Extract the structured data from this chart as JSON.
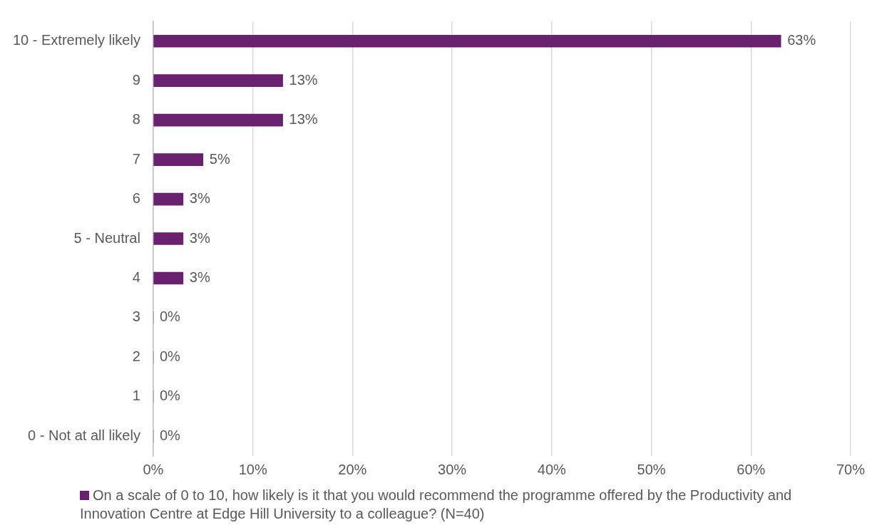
{
  "chart_data": {
    "type": "bar",
    "orientation": "horizontal",
    "categories": [
      "10 - Extremely likely",
      "9",
      "8",
      "7",
      "6",
      "5 - Neutral",
      "4",
      "3",
      "2",
      "1",
      "0 - Not at all likely"
    ],
    "series": [
      {
        "name": "On a scale of 0 to 10, how likely is it that you would recommend the programme offered by the Productivity and Innovation Centre at Edge Hill University to a colleague? (N=40)",
        "color": "#68206f",
        "values": [
          63,
          13,
          13,
          5,
          3,
          3,
          3,
          0,
          0,
          0,
          0
        ],
        "value_labels": [
          "63%",
          "13%",
          "13%",
          "5%",
          "3%",
          "3%",
          "3%",
          "0%",
          "0%",
          "0%",
          "0%"
        ]
      }
    ],
    "xlim": [
      0,
      70
    ],
    "xticks": [
      {
        "value": 0,
        "label": "0%"
      },
      {
        "value": 10,
        "label": "10%"
      },
      {
        "value": 20,
        "label": "20%"
      },
      {
        "value": 30,
        "label": "30%"
      },
      {
        "value": 40,
        "label": "40%"
      },
      {
        "value": 50,
        "label": "50%"
      },
      {
        "value": 60,
        "label": "60%"
      },
      {
        "value": 70,
        "label": "70%"
      }
    ],
    "grid": "x",
    "legend": "bottom"
  }
}
